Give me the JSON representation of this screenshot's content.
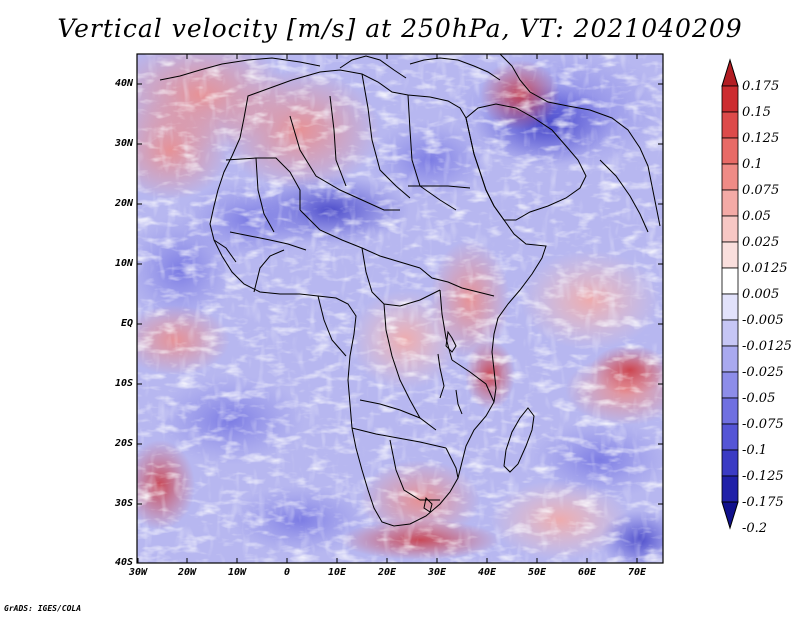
{
  "title": "Vertical velocity [m/s] at 250hPa, VT: 2021040209",
  "credit": "GrADS: IGES/COLA",
  "lat_labels": [
    "40N",
    "30N",
    "20N",
    "10N",
    "EQ",
    "10S",
    "20S",
    "30S",
    "40S"
  ],
  "lon_labels": [
    "30W",
    "20W",
    "10W",
    "0",
    "10E",
    "20E",
    "30E",
    "40E",
    "50E",
    "60E",
    "70E"
  ],
  "colorbar": {
    "labels": [
      "0.175",
      "0.15",
      "0.125",
      "0.1",
      "0.075",
      "0.05",
      "0.025",
      "0.0125",
      "0.005",
      "-0.005",
      "-0.0125",
      "-0.025",
      "-0.05",
      "-0.075",
      "-0.1",
      "-0.125",
      "-0.175",
      "-0.2"
    ],
    "colors": [
      "#b31d23",
      "#cc2c30",
      "#dd4a4a",
      "#e86a66",
      "#ef8b86",
      "#f4aaa6",
      "#f7c7c4",
      "#fadfdd",
      "#ffffff",
      "#e2e2fb",
      "#c6c6f5",
      "#a9a9ef",
      "#8d8de9",
      "#7070e1",
      "#5555d6",
      "#3b3bc4",
      "#2020a8",
      "#10108c"
    ]
  }
}
